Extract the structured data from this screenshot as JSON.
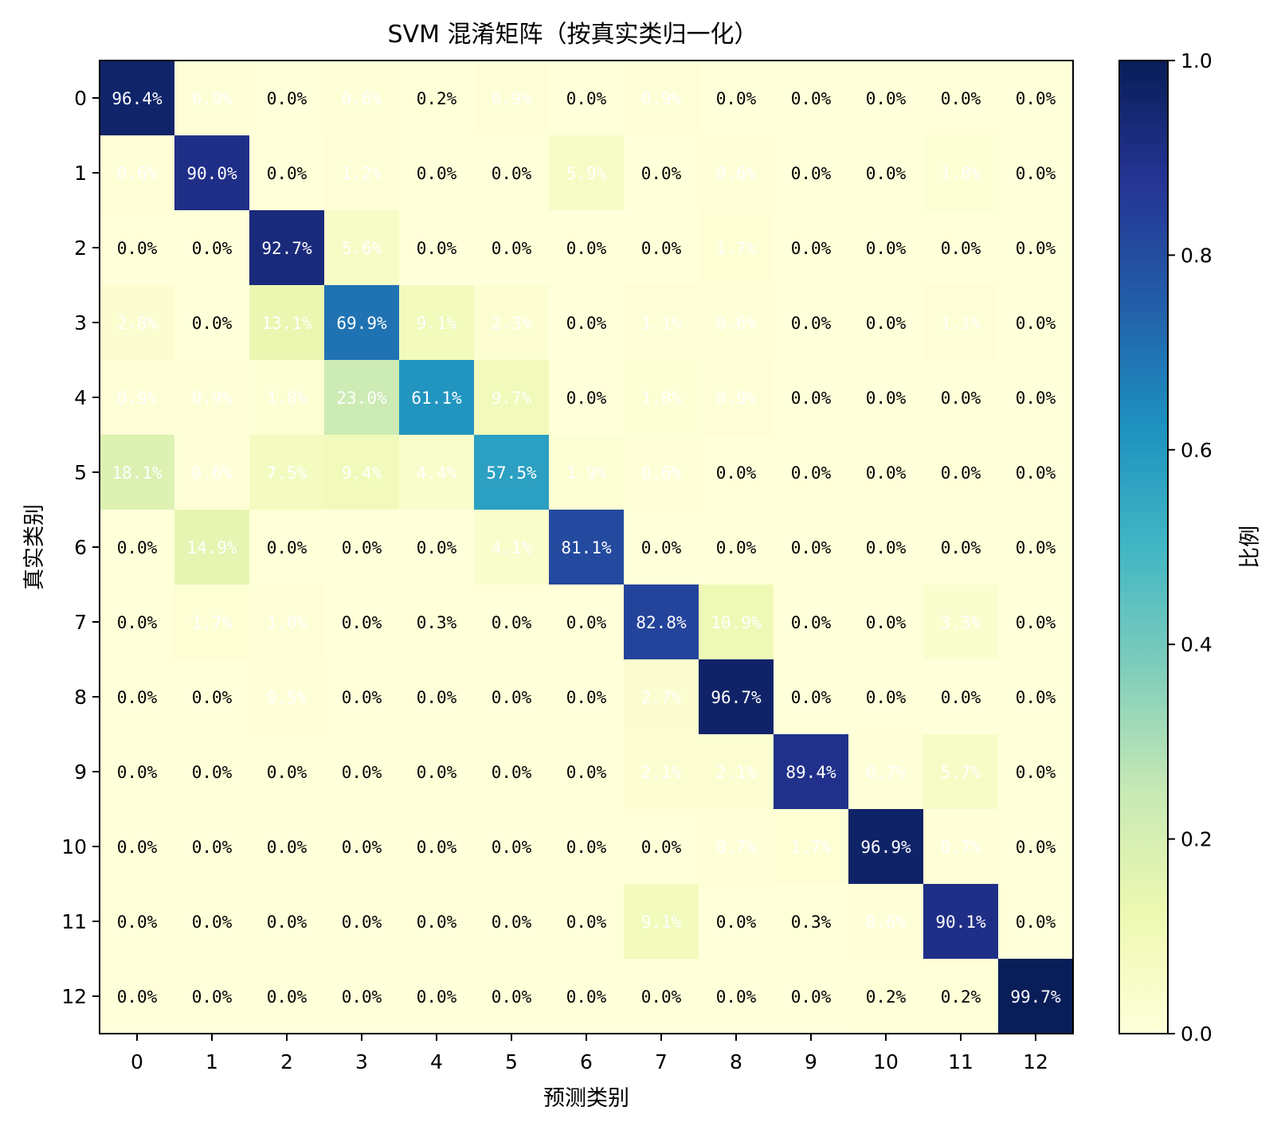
{
  "chart_data": {
    "type": "heatmap",
    "title": "SVM 混淆矩阵（按真实类归一化）",
    "xlabel": "预测类别",
    "ylabel": "真实类别",
    "categories": [
      "0",
      "1",
      "2",
      "3",
      "4",
      "5",
      "6",
      "7",
      "8",
      "9",
      "10",
      "11",
      "12"
    ],
    "colorbar": {
      "label": "比例",
      "range": [
        0.0,
        1.0
      ],
      "ticks": [
        "0.0",
        "0.2",
        "0.4",
        "0.6",
        "0.8",
        "1.0"
      ],
      "colormap": "YlGnBu",
      "stops": [
        "#ffffd9",
        "#edf8b1",
        "#c7e9b4",
        "#7fcdbb",
        "#41b6c4",
        "#1d91c0",
        "#225ea8",
        "#253494",
        "#081d58"
      ]
    },
    "values": [
      [
        96.4,
        0.9,
        0.0,
        0.6,
        0.2,
        0.9,
        0.0,
        0.9,
        0.0,
        0.0,
        0.0,
        0.0,
        0.0
      ],
      [
        0.6,
        90.0,
        0.0,
        1.2,
        0.0,
        0.0,
        5.9,
        0.0,
        0.6,
        0.0,
        0.0,
        1.8,
        0.0
      ],
      [
        0.0,
        0.0,
        92.7,
        5.6,
        0.0,
        0.0,
        0.0,
        0.0,
        1.7,
        0.0,
        0.0,
        0.0,
        0.0
      ],
      [
        2.8,
        0.0,
        13.1,
        69.9,
        9.1,
        2.3,
        0.0,
        1.1,
        0.6,
        0.0,
        0.0,
        1.1,
        0.0
      ],
      [
        0.9,
        0.9,
        1.8,
        23.0,
        61.1,
        9.7,
        0.0,
        1.8,
        0.9,
        0.0,
        0.0,
        0.0,
        0.0
      ],
      [
        18.1,
        0.6,
        7.5,
        9.4,
        4.4,
        57.5,
        1.9,
        0.6,
        0.0,
        0.0,
        0.0,
        0.0,
        0.0
      ],
      [
        0.0,
        14.9,
        0.0,
        0.0,
        0.0,
        4.1,
        81.1,
        0.0,
        0.0,
        0.0,
        0.0,
        0.0,
        0.0
      ],
      [
        0.0,
        1.7,
        1.0,
        0.0,
        0.3,
        0.0,
        0.0,
        82.8,
        10.9,
        0.0,
        0.0,
        3.3,
        0.0
      ],
      [
        0.0,
        0.0,
        0.5,
        0.0,
        0.0,
        0.0,
        0.0,
        2.7,
        96.7,
        0.0,
        0.0,
        0.0,
        0.0
      ],
      [
        0.0,
        0.0,
        0.0,
        0.0,
        0.0,
        0.0,
        0.0,
        2.1,
        2.1,
        89.4,
        0.7,
        5.7,
        0.0
      ],
      [
        0.0,
        0.0,
        0.0,
        0.0,
        0.0,
        0.0,
        0.0,
        0.0,
        0.7,
        1.7,
        96.9,
        0.7,
        0.0
      ],
      [
        0.0,
        0.0,
        0.0,
        0.0,
        0.0,
        0.0,
        0.0,
        9.1,
        0.0,
        0.3,
        0.6,
        90.1,
        0.0
      ],
      [
        0.0,
        0.0,
        0.0,
        0.0,
        0.0,
        0.0,
        0.0,
        0.0,
        0.0,
        0.0,
        0.2,
        0.2,
        99.7
      ]
    ],
    "value_format": "percent, 1 decimal",
    "grid": false
  }
}
